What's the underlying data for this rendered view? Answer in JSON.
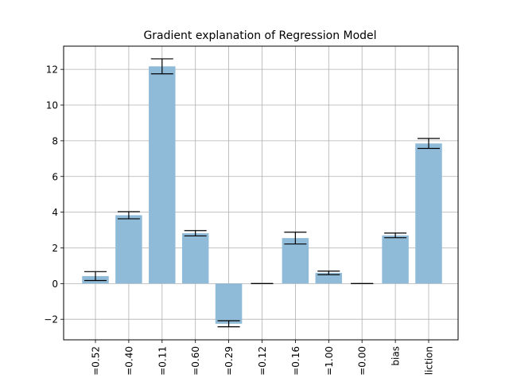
{
  "chart_data": {
    "type": "bar",
    "title": "Gradient explanation of Regression Model",
    "xlabel": "",
    "ylabel": "",
    "categories": [
      "=0.52",
      "=0.40",
      "=0.11",
      "=0.60",
      "=0.29",
      "=0.12",
      "=0.16",
      "=1.00",
      "=0.00",
      "bias",
      "liction"
    ],
    "values": [
      0.42,
      3.83,
      12.17,
      2.82,
      -2.25,
      0.0,
      2.55,
      0.6,
      0.0,
      2.7,
      7.85
    ],
    "errors": [
      0.25,
      0.2,
      0.42,
      0.15,
      0.17,
      0.0,
      0.33,
      0.1,
      0.0,
      0.13,
      0.28
    ],
    "ylim": [
      -3.15,
      13.3
    ],
    "yticks": [
      -2,
      0,
      2,
      4,
      6,
      8,
      10,
      12
    ],
    "ytick_labels": [
      "−2",
      "0",
      "2",
      "4",
      "6",
      "8",
      "10",
      "12"
    ],
    "grid": true,
    "bar_color": "#8fbbd9",
    "errorbar_color": "#000000"
  }
}
